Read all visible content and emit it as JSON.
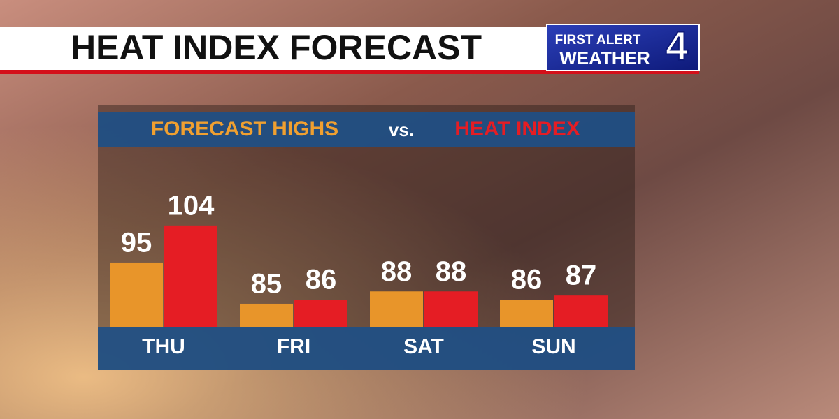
{
  "header": {
    "title": "HEAT INDEX FORECAST"
  },
  "branding": {
    "line1": "FIRST ALERT",
    "line2": "WEATHER",
    "number": "4"
  },
  "chart_data": {
    "type": "bar",
    "legend_connector": "vs.",
    "categories": [
      "THU",
      "FRI",
      "SAT",
      "SUN"
    ],
    "series": [
      {
        "name": "FORECAST HIGHS",
        "color": "#e8952a",
        "values": [
          95,
          85,
          88,
          86
        ]
      },
      {
        "name": "HEAT INDEX",
        "color": "#e51d24",
        "values": [
          104,
          86,
          88,
          87
        ]
      }
    ]
  }
}
